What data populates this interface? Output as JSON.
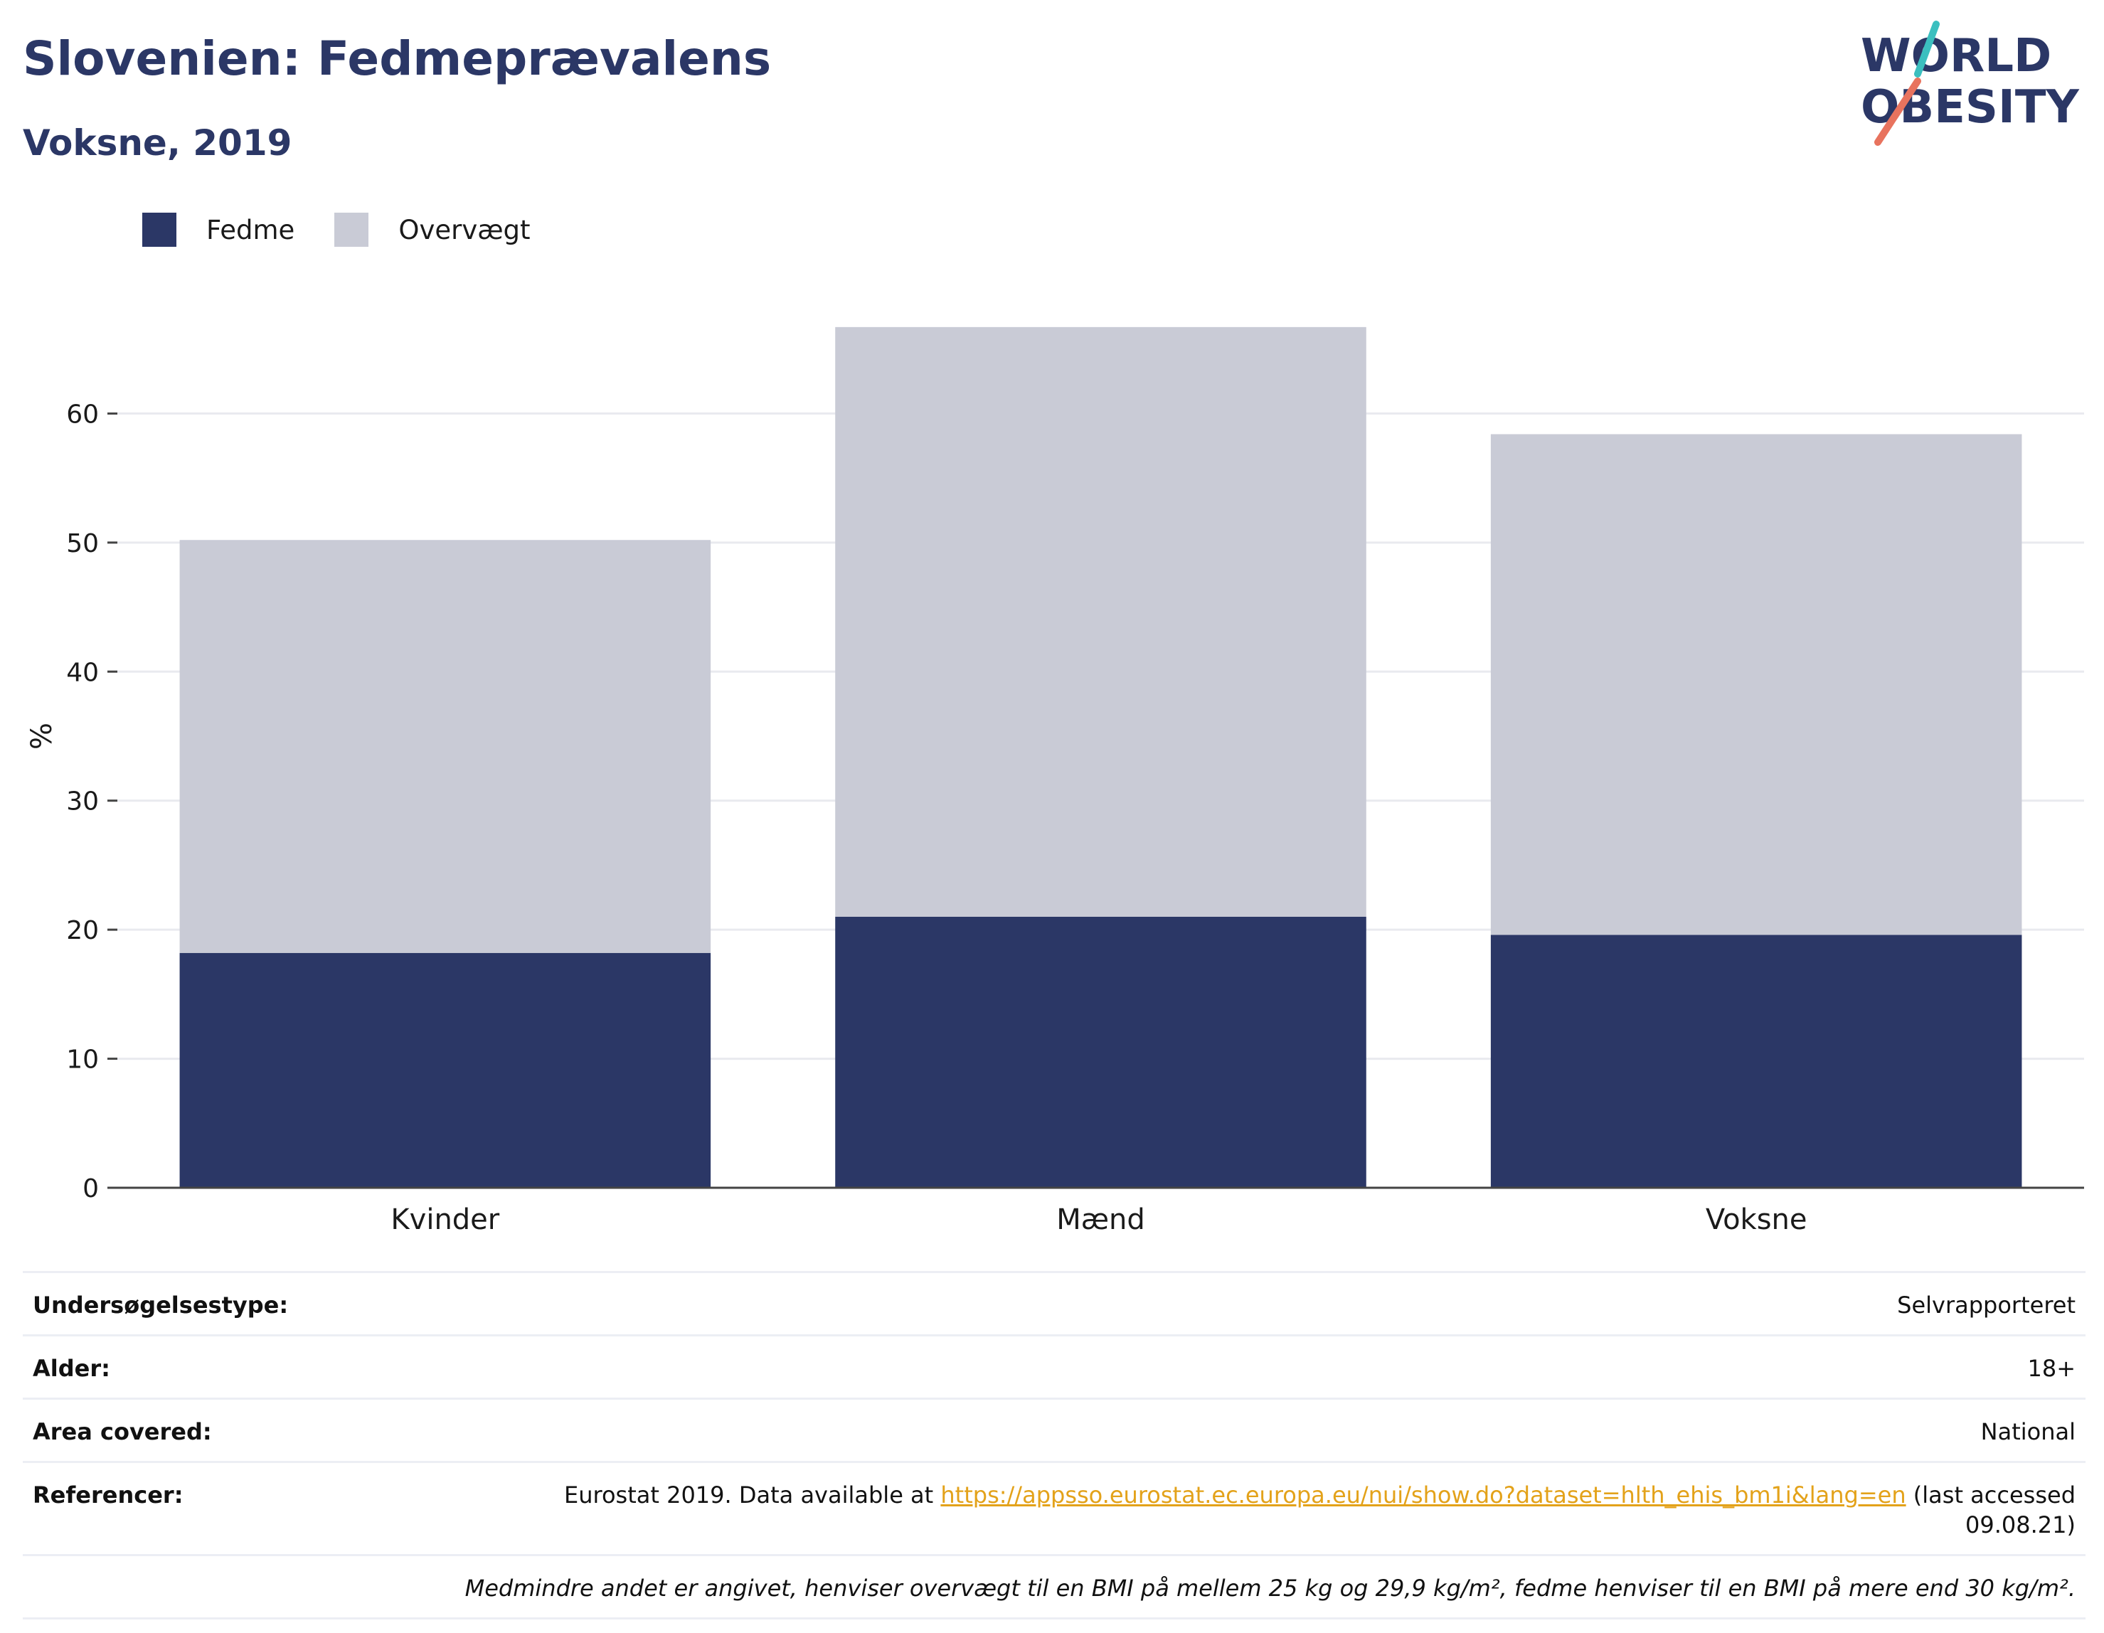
{
  "header": {
    "title": "Slovenien: Fedmeprævalens",
    "subtitle": "Voksne, 2019"
  },
  "logo": {
    "line1": "WORLD",
    "line2": "OBESITY",
    "colors": {
      "text": "#2b3766",
      "slash_top": "#3bbfbf",
      "slash_bottom": "#e8735e"
    }
  },
  "legend": {
    "items": [
      {
        "label": "Fedme",
        "color": "#2b3766"
      },
      {
        "label": "Overvægt",
        "color": "#c9cbd6"
      }
    ]
  },
  "chart_data": {
    "type": "bar",
    "stacked": true,
    "categories": [
      "Kvinder",
      "Mænd",
      "Voksne"
    ],
    "series": [
      {
        "name": "Fedme",
        "color": "#2b3766",
        "values": [
          18.2,
          21.0,
          19.6
        ]
      },
      {
        "name": "Overvægt",
        "color": "#c9cbd6",
        "values": [
          32.0,
          45.7,
          38.8
        ]
      }
    ],
    "title": "Slovenien: Fedmeprævalens",
    "subtitle": "Voksne, 2019",
    "xlabel": "",
    "ylabel": "%",
    "ylim": [
      0,
      70
    ],
    "yticks": [
      0,
      10,
      20,
      30,
      40,
      50,
      60
    ],
    "grid": true,
    "legend_position": "top-left"
  },
  "info": {
    "survey_label": "Undersøgelsestype:",
    "survey_value": "Selvrapporteret",
    "age_label": "Alder:",
    "age_value": "18+",
    "area_label": "Area covered:",
    "area_value": "National",
    "ref_label": "Referencer:",
    "ref_prefix": "Eurostat 2019. Data available at ",
    "ref_link": "https://appsso.eurostat.ec.europa.eu/nui/show.do?dataset=hlth_ehis_bm1i&lang=en",
    "ref_suffix": " (last accessed 09.08.21)",
    "note": "Medmindre andet er angivet, henviser overvægt til en BMI på mellem 25 kg og 29,9 kg/m², fedme henviser til en BMI på mere end 30 kg/m²."
  }
}
